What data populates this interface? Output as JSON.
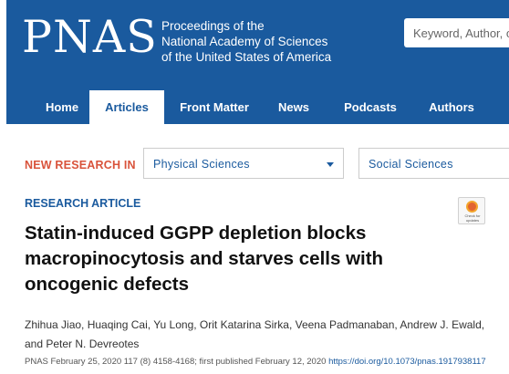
{
  "header": {
    "logo": "PNAS",
    "tagline": [
      "Proceedings of the",
      "National Academy of Sciences",
      "of the United States of America"
    ],
    "search_placeholder": "Keyword, Author, o"
  },
  "nav": {
    "items": [
      {
        "label": "Home",
        "active": false
      },
      {
        "label": "Articles",
        "active": true
      },
      {
        "label": "Front Matter",
        "active": false
      },
      {
        "label": "News",
        "active": false
      },
      {
        "label": "Podcasts",
        "active": false
      },
      {
        "label": "Authors",
        "active": false
      }
    ]
  },
  "new_research": {
    "label": "NEW RESEARCH IN",
    "selects": [
      "Physical Sciences",
      "Social Sciences"
    ]
  },
  "article": {
    "type": "RESEARCH ARTICLE",
    "crossmark_label": "Check for updates",
    "title": "Statin-induced GGPP depletion blocks macropinocytosis and starves cells with oncogenic defects",
    "authors": "Zhihua Jiao, Huaqing Cai, Yu Long, Orit Katarina Sirka, Veena Padmanaban, Andrew J. Ewald, and Peter N. Devreotes",
    "citation": "PNAS February 25, 2020 117 (8) 4158-4168; first published February 12, 2020",
    "doi": "https://doi.org/10.1073/pnas.1917938117"
  }
}
